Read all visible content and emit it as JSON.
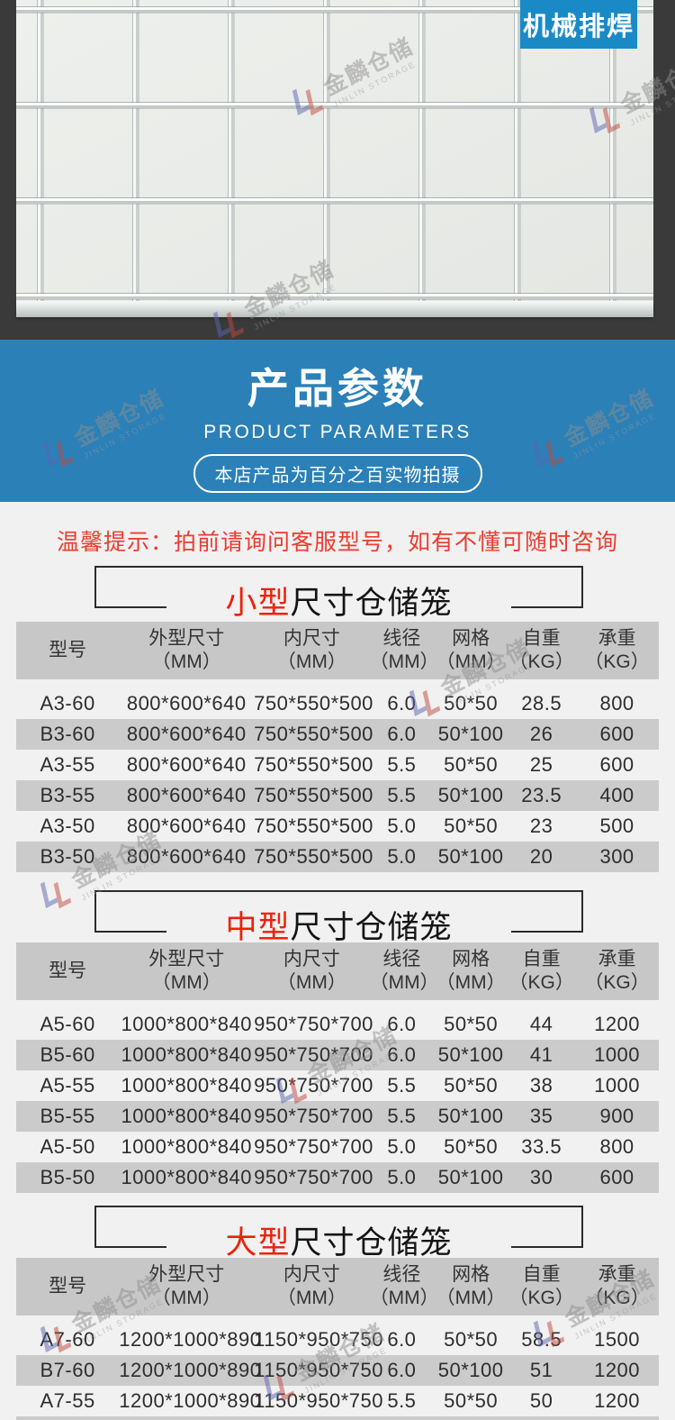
{
  "photo": {
    "corner_label": "机械排焊"
  },
  "watermark": {
    "cn": "金麟仓储",
    "en": "JINLIN STORAGE"
  },
  "banner": {
    "title": "产品参数",
    "subtitle": "PRODUCT PARAMETERS",
    "badge": "本店产品为百分之百实物拍摄"
  },
  "tip": "温馨提示：拍前请询问客服型号，如有不懂可随时咨询",
  "table_headers": [
    {
      "name": "型号",
      "unit": ""
    },
    {
      "name": "外型尺寸",
      "unit": "（MM）"
    },
    {
      "name": "内尺寸",
      "unit": "（MM）"
    },
    {
      "name": "线径",
      "unit": "（MM）"
    },
    {
      "name": "网格",
      "unit": "（MM）"
    },
    {
      "name": "自重",
      "unit": "（KG）"
    },
    {
      "name": "承重",
      "unit": "（KG）"
    }
  ],
  "sections": [
    {
      "title_highlight": "小型",
      "title_rest": "尺寸仓储笼",
      "rows": [
        [
          "A3-60",
          "800*600*640",
          "750*550*500",
          "6.0",
          "50*50",
          "28.5",
          "800"
        ],
        [
          "B3-60",
          "800*600*640",
          "750*550*500",
          "6.0",
          "50*100",
          "26",
          "600"
        ],
        [
          "A3-55",
          "800*600*640",
          "750*550*500",
          "5.5",
          "50*50",
          "25",
          "600"
        ],
        [
          "B3-55",
          "800*600*640",
          "750*550*500",
          "5.5",
          "50*100",
          "23.5",
          "400"
        ],
        [
          "A3-50",
          "800*600*640",
          "750*550*500",
          "5.0",
          "50*50",
          "23",
          "500"
        ],
        [
          "B3-50",
          "800*600*640",
          "750*550*500",
          "5.0",
          "50*100",
          "20",
          "300"
        ]
      ]
    },
    {
      "title_highlight": "中型",
      "title_rest": "尺寸仓储笼",
      "rows": [
        [
          "A5-60",
          "1000*800*840",
          "950*750*700",
          "6.0",
          "50*50",
          "44",
          "1200"
        ],
        [
          "B5-60",
          "1000*800*840",
          "950*750*700",
          "6.0",
          "50*100",
          "41",
          "1000"
        ],
        [
          "A5-55",
          "1000*800*840",
          "950*750*700",
          "5.5",
          "50*50",
          "38",
          "1000"
        ],
        [
          "B5-55",
          "1000*800*840",
          "950*750*700",
          "5.5",
          "50*100",
          "35",
          "900"
        ],
        [
          "A5-50",
          "1000*800*840",
          "950*750*700",
          "5.0",
          "50*50",
          "33.5",
          "800"
        ],
        [
          "B5-50",
          "1000*800*840",
          "950*750*700",
          "5.0",
          "50*100",
          "30",
          "600"
        ]
      ]
    },
    {
      "title_highlight": "大型",
      "title_rest": "尺寸仓储笼",
      "rows": [
        [
          "A7-60",
          "1200*1000*890",
          "1150*950*750",
          "6.0",
          "50*50",
          "58.5",
          "1500"
        ],
        [
          "B7-60",
          "1200*1000*890",
          "1150*950*750",
          "6.0",
          "50*100",
          "51",
          "1200"
        ],
        [
          "A7-55",
          "1200*1000*890",
          "1150*950*750",
          "5.5",
          "50*50",
          "50",
          "1200"
        ]
      ]
    }
  ],
  "colors": {
    "banner_blue": "#2b80b8",
    "label_blue": "#1a8ac7",
    "header_gray": "#c7c7c7",
    "row_gray": "#cbcbcb",
    "accent_red": "#ed2109",
    "tip_red": "#ec3c30",
    "frame_dark": "#3a3a3a"
  }
}
